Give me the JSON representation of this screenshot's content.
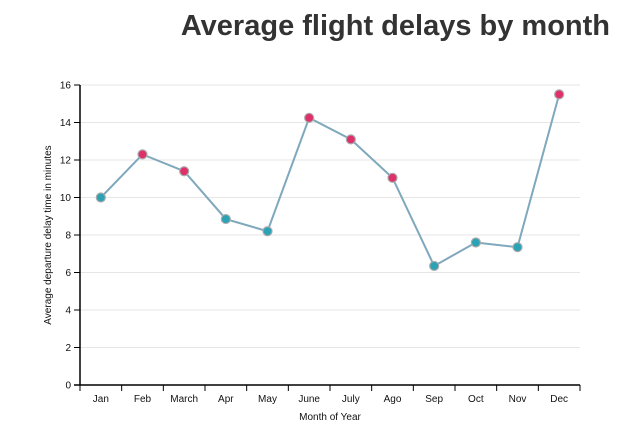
{
  "chart_data": {
    "type": "line",
    "title": "Average flight delays by month",
    "xlabel": "Month of Year",
    "ylabel": "Average departure delay time in minutes",
    "categories": [
      "Jan",
      "Feb",
      "March",
      "Apr",
      "May",
      "June",
      "July",
      "Ago",
      "Sep",
      "Oct",
      "Nov",
      "Dec"
    ],
    "values": [
      10.0,
      12.3,
      11.4,
      8.85,
      8.2,
      14.25,
      13.1,
      11.05,
      6.35,
      7.6,
      7.35,
      15.5
    ],
    "point_colors": [
      "#2ba3b5",
      "#e0306a",
      "#e0306a",
      "#2ba3b5",
      "#2ba3b5",
      "#e0306a",
      "#e0306a",
      "#e0306a",
      "#2ba3b5",
      "#2ba3b5",
      "#2ba3b5",
      "#e0306a"
    ],
    "line_color": "#7fa8bd",
    "ylim": [
      0,
      16
    ],
    "yticks": [
      0,
      2,
      4,
      6,
      8,
      10,
      12,
      14,
      16
    ],
    "grid": true
  }
}
